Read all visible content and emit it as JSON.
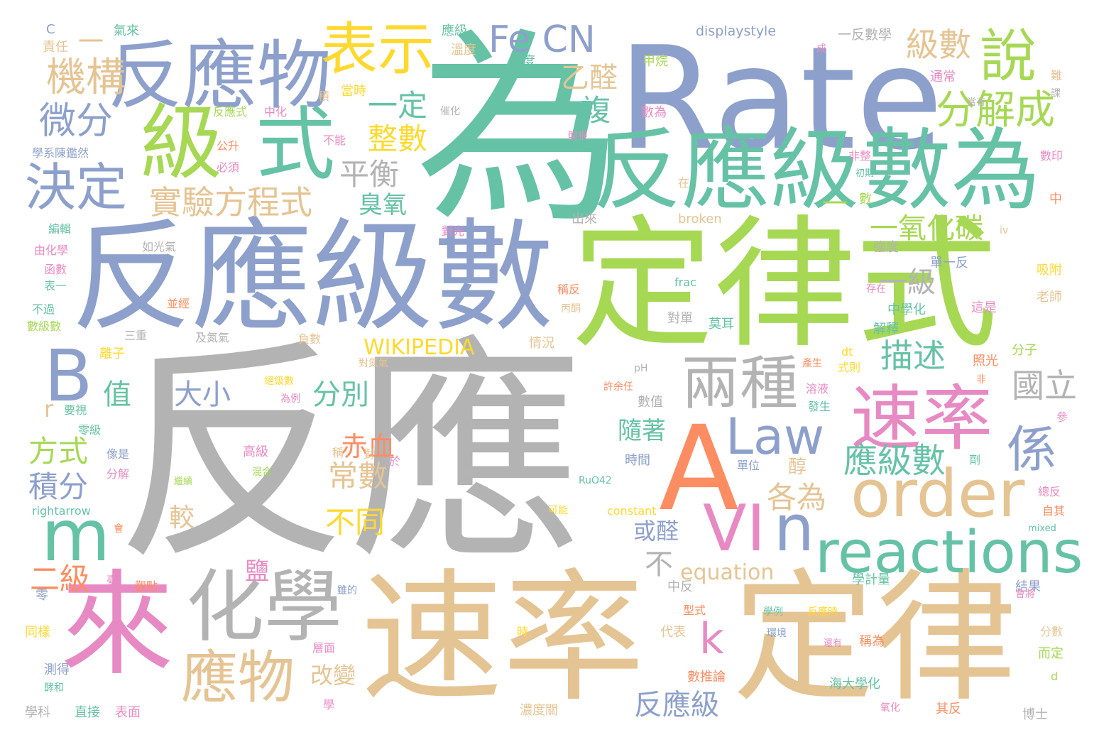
{
  "palette": {
    "gray": "#b3b3b3",
    "blue": "#8da0cb",
    "green": "#66c2a5",
    "lime": "#a6d854",
    "tan": "#e5c494",
    "pink": "#e78ac3",
    "orange": "#fc8d62",
    "yellow": "#ffd92f"
  },
  "words": [
    {
      "text": "反應",
      "color": "gray"
    },
    {
      "text": "為",
      "color": "green"
    },
    {
      "text": "Rate",
      "color": "blue"
    },
    {
      "text": "定律式",
      "color": "lime"
    },
    {
      "text": "反應級數",
      "color": "blue"
    },
    {
      "text": "速率",
      "color": "tan"
    },
    {
      "text": "定律",
      "color": "tan"
    },
    {
      "text": "反應級",
      "color": "green"
    },
    {
      "text": "數為",
      "color": "green"
    },
    {
      "text": "反應物",
      "color": "blue"
    },
    {
      "text": "級",
      "color": "lime"
    },
    {
      "text": "式",
      "color": "green"
    },
    {
      "text": "來",
      "color": "pink"
    },
    {
      "text": "A",
      "color": "orange"
    },
    {
      "text": "化學",
      "color": "gray"
    },
    {
      "text": "order",
      "color": "tan"
    },
    {
      "text": "reactions",
      "color": "green"
    },
    {
      "text": "B",
      "color": "blue"
    },
    {
      "text": "m",
      "color": "green"
    },
    {
      "text": "表示",
      "color": "yellow"
    },
    {
      "text": "說",
      "color": "lime"
    },
    {
      "text": "速率",
      "color": "pink"
    },
    {
      "text": "兩種",
      "color": "gray"
    },
    {
      "text": "應物",
      "color": "tan"
    },
    {
      "text": "Fe CN",
      "color": "blue"
    },
    {
      "text": "決定",
      "color": "blue"
    },
    {
      "text": "Law",
      "color": "blue"
    },
    {
      "text": "VI",
      "color": "pink"
    },
    {
      "text": "n",
      "color": "blue"
    },
    {
      "text": "分解成",
      "color": "lime"
    },
    {
      "text": "實驗方程式",
      "color": "tan"
    },
    {
      "text": "機構",
      "color": "tan"
    },
    {
      "text": "微分",
      "color": "blue"
    },
    {
      "text": "級數",
      "color": "tan"
    },
    {
      "text": "係",
      "color": "blue"
    },
    {
      "text": "應級數",
      "color": "green"
    },
    {
      "text": "國立",
      "color": "gray"
    },
    {
      "text": "描述",
      "color": "green"
    },
    {
      "text": "整數",
      "color": "yellow"
    },
    {
      "text": "一定",
      "color": "green"
    },
    {
      "text": "乙醛",
      "color": "tan"
    },
    {
      "text": "複",
      "color": "green"
    },
    {
      "text": "平衡",
      "color": "gray"
    },
    {
      "text": "臭氧",
      "color": "green"
    },
    {
      "text": "一氧化碳",
      "color": "lime"
    },
    {
      "text": "一級",
      "color": "gray"
    },
    {
      "text": "大小",
      "color": "blue"
    },
    {
      "text": "分別",
      "color": "green"
    },
    {
      "text": "值",
      "color": "green"
    },
    {
      "text": "方式",
      "color": "lime"
    },
    {
      "text": "積分",
      "color": "blue"
    },
    {
      "text": "赤血",
      "color": "orange"
    },
    {
      "text": "常數",
      "color": "tan"
    },
    {
      "text": "不同",
      "color": "yellow"
    },
    {
      "text": "各為",
      "color": "tan"
    },
    {
      "text": "反應級",
      "color": "blue"
    },
    {
      "text": "二級",
      "color": "orange"
    },
    {
      "text": "k",
      "color": "pink"
    },
    {
      "text": "WIKIPEDIA",
      "color": "yellow"
    },
    {
      "text": "equation",
      "color": "tan"
    },
    {
      "text": "較",
      "color": "tan"
    },
    {
      "text": "隨著",
      "color": "green"
    },
    {
      "text": "鹽",
      "color": "pink"
    },
    {
      "text": "或醛",
      "color": "blue"
    },
    {
      "text": "改變",
      "color": "tan"
    },
    {
      "text": "r",
      "color": "tan"
    },
    {
      "text": "不",
      "color": "gray"
    },
    {
      "text": "醇",
      "color": "tan"
    },
    {
      "text": "displaystyle",
      "color": "blue"
    },
    {
      "text": "一反數學",
      "color": "gray"
    },
    {
      "text": "C",
      "color": "blue"
    },
    {
      "text": "氣來",
      "color": "green"
    },
    {
      "text": "責任",
      "color": "tan"
    },
    {
      "text": "應級",
      "color": "green"
    },
    {
      "text": "溫度",
      "color": "tan"
    },
    {
      "text": "濃度",
      "color": "green"
    },
    {
      "text": "甲烷",
      "color": "lime"
    },
    {
      "text": "通常",
      "color": "pink"
    },
    {
      "text": "當時",
      "color": "yellow"
    },
    {
      "text": "反應式",
      "color": "lime"
    },
    {
      "text": "中化",
      "color": "pink"
    },
    {
      "text": "積",
      "color": "tan"
    },
    {
      "text": "數為",
      "color": "pink"
    },
    {
      "text": "催化",
      "color": "gray"
    },
    {
      "text": "當有",
      "color": "gray"
    },
    {
      "text": "學系陳鑑然",
      "color": "blue"
    },
    {
      "text": "公升",
      "color": "orange"
    },
    {
      "text": "不能",
      "color": "pink"
    },
    {
      "text": "酸根",
      "color": "pink"
    },
    {
      "text": "必須",
      "color": "pink"
    },
    {
      "text": "非整",
      "color": "pink"
    },
    {
      "text": "初期",
      "color": "green"
    },
    {
      "text": "數印",
      "color": "pink"
    },
    {
      "text": "出來",
      "color": "gray"
    },
    {
      "text": "broken",
      "color": "tan"
    },
    {
      "text": "數",
      "color": "lime"
    },
    {
      "text": "中",
      "color": "orange"
    },
    {
      "text": "編輯",
      "color": "green"
    },
    {
      "text": "對光",
      "color": "pink"
    },
    {
      "text": "iv",
      "color": "tan"
    },
    {
      "text": "由化學",
      "color": "pink"
    },
    {
      "text": "如光氣",
      "color": "gray"
    },
    {
      "text": "強度",
      "color": "gray"
    },
    {
      "text": "單一反",
      "color": "blue"
    },
    {
      "text": "函數",
      "color": "pink"
    },
    {
      "text": "frac",
      "color": "green"
    },
    {
      "text": "稱反",
      "color": "orange"
    },
    {
      "text": "吸附",
      "color": "yellow"
    },
    {
      "text": "表一",
      "color": "green"
    },
    {
      "text": "並經",
      "color": "orange"
    },
    {
      "text": "存在",
      "color": "pink"
    },
    {
      "text": "老師",
      "color": "tan"
    },
    {
      "text": "不過",
      "color": "green"
    },
    {
      "text": "丙酮",
      "color": "tan"
    },
    {
      "text": "中學化",
      "color": "green"
    },
    {
      "text": "這是",
      "color": "pink"
    },
    {
      "text": "數級數",
      "color": "lime"
    },
    {
      "text": "對單",
      "color": "gray"
    },
    {
      "text": "莫耳",
      "color": "green"
    },
    {
      "text": "三重",
      "color": "gray"
    },
    {
      "text": "及氮氣",
      "color": "gray"
    },
    {
      "text": "負數",
      "color": "tan"
    },
    {
      "text": "情況",
      "color": "tan"
    },
    {
      "text": "解釋",
      "color": "green"
    },
    {
      "text": "離子",
      "color": "yellow"
    },
    {
      "text": "照光",
      "color": "orange"
    },
    {
      "text": "分子",
      "color": "lime"
    },
    {
      "text": "dt",
      "color": "yellow"
    },
    {
      "text": "式則",
      "color": "yellow"
    },
    {
      "text": "對氮氣",
      "color": "tan"
    },
    {
      "text": "產生",
      "color": "orange"
    },
    {
      "text": "pH",
      "color": "gray"
    },
    {
      "text": "非",
      "color": "orange"
    },
    {
      "text": "絕級數",
      "color": "yellow"
    },
    {
      "text": "許余任",
      "color": "orange"
    },
    {
      "text": "溶液",
      "color": "pink"
    },
    {
      "text": "要視",
      "color": "green"
    },
    {
      "text": "為例",
      "color": "pink"
    },
    {
      "text": "數值",
      "color": "gray"
    },
    {
      "text": "發生",
      "color": "green"
    },
    {
      "text": "參",
      "color": "pink"
    },
    {
      "text": "零級",
      "color": "green"
    },
    {
      "text": "像是",
      "color": "blue"
    },
    {
      "text": "高級",
      "color": "pink"
    },
    {
      "text": "稱",
      "color": "tan"
    },
    {
      "text": "對",
      "color": "tan"
    },
    {
      "text": "於",
      "color": "pink"
    },
    {
      "text": "時間",
      "color": "blue"
    },
    {
      "text": "單位",
      "color": "blue"
    },
    {
      "text": "劑",
      "color": "green"
    },
    {
      "text": "分解",
      "color": "pink"
    },
    {
      "text": "混合",
      "color": "lime"
    },
    {
      "text": "RuO42",
      "color": "green"
    },
    {
      "text": "可能",
      "color": "yellow"
    },
    {
      "text": "總反",
      "color": "pink"
    },
    {
      "text": "rightarrow",
      "color": "green"
    },
    {
      "text": "constant",
      "color": "yellow"
    },
    {
      "text": "自其",
      "color": "orange"
    },
    {
      "text": "mixed",
      "color": "green"
    },
    {
      "text": "臺",
      "color": "pink"
    },
    {
      "text": "觀點",
      "color": "orange"
    },
    {
      "text": "中反",
      "color": "gray"
    },
    {
      "text": "學計量",
      "color": "green"
    },
    {
      "text": "結果",
      "color": "blue"
    },
    {
      "text": "雖的",
      "color": "blue"
    },
    {
      "text": "零",
      "color": "blue"
    },
    {
      "text": "型式",
      "color": "orange"
    },
    {
      "text": "學例",
      "color": "green"
    },
    {
      "text": "反應時",
      "color": "yellow"
    },
    {
      "text": "會將",
      "color": "pink"
    },
    {
      "text": "同樣",
      "color": "yellow"
    },
    {
      "text": "時",
      "color": "yellow"
    },
    {
      "text": "代表",
      "color": "tan"
    },
    {
      "text": "分數",
      "color": "tan"
    },
    {
      "text": "層面",
      "color": "pink"
    },
    {
      "text": "還有",
      "color": "pink"
    },
    {
      "text": "稱為",
      "color": "orange"
    },
    {
      "text": "而定",
      "color": "lime"
    },
    {
      "text": "測得",
      "color": "blue"
    },
    {
      "text": "數推論",
      "color": "orange"
    },
    {
      "text": "海大學化",
      "color": "green"
    },
    {
      "text": "d",
      "color": "lime"
    },
    {
      "text": "酵和",
      "color": "green"
    },
    {
      "text": "學科",
      "color": "gray"
    },
    {
      "text": "直接",
      "color": "green"
    },
    {
      "text": "表面",
      "color": "pink"
    },
    {
      "text": "學",
      "color": "pink"
    },
    {
      "text": "濃度關",
      "color": "tan"
    },
    {
      "text": "氧化",
      "color": "pink"
    },
    {
      "text": "其反",
      "color": "orange"
    },
    {
      "text": "博士",
      "color": "gray"
    },
    {
      "text": "成",
      "color": "pink"
    },
    {
      "text": "難",
      "color": "tan"
    },
    {
      "text": "一",
      "color": "tan"
    },
    {
      "text": "一",
      "color": "lime"
    },
    {
      "text": "在",
      "color": "tan"
    },
    {
      "text": "課",
      "color": "gray"
    },
    {
      "text": "繼續",
      "color": "lime"
    },
    {
      "text": "會",
      "color": "orange"
    },
    {
      "text": "環境",
      "color": "blue"
    }
  ]
}
